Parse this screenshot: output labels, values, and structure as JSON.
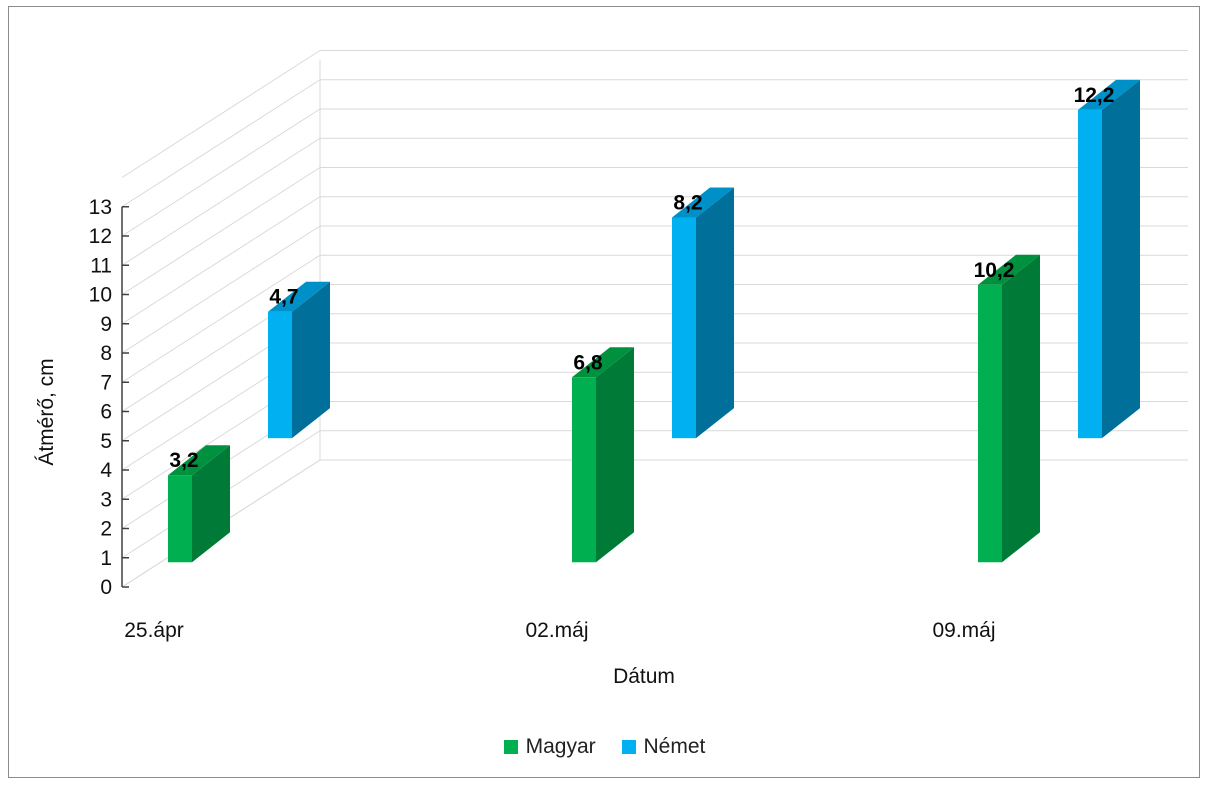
{
  "chart_data": {
    "type": "bar",
    "style": "3d-clustered-column",
    "categories": [
      "25.ápr",
      "02.máj",
      "09.máj"
    ],
    "series": [
      {
        "name": "Magyar",
        "values": [
          3.2,
          6.8,
          10.2
        ],
        "color": "#00b050",
        "side_color": "#007a37",
        "top_color": "#00913f"
      },
      {
        "name": "Német",
        "values": [
          4.7,
          8.2,
          12.2
        ],
        "color": "#00b0f0",
        "side_color": "#00709a",
        "top_color": "#0090c8"
      }
    ],
    "data_labels": [
      [
        "3,2",
        "6,8",
        "10,2"
      ],
      [
        "4,7",
        "8,2",
        "12,2"
      ]
    ],
    "xlabel": "Dátum",
    "ylabel": "Átmérő, cm",
    "yticks": [
      "0",
      "1",
      "2",
      "3",
      "4",
      "5",
      "6",
      "7",
      "8",
      "9",
      "10",
      "11",
      "12",
      "13"
    ],
    "ylim": [
      0,
      13
    ],
    "grid": true,
    "legend_position": "bottom"
  }
}
